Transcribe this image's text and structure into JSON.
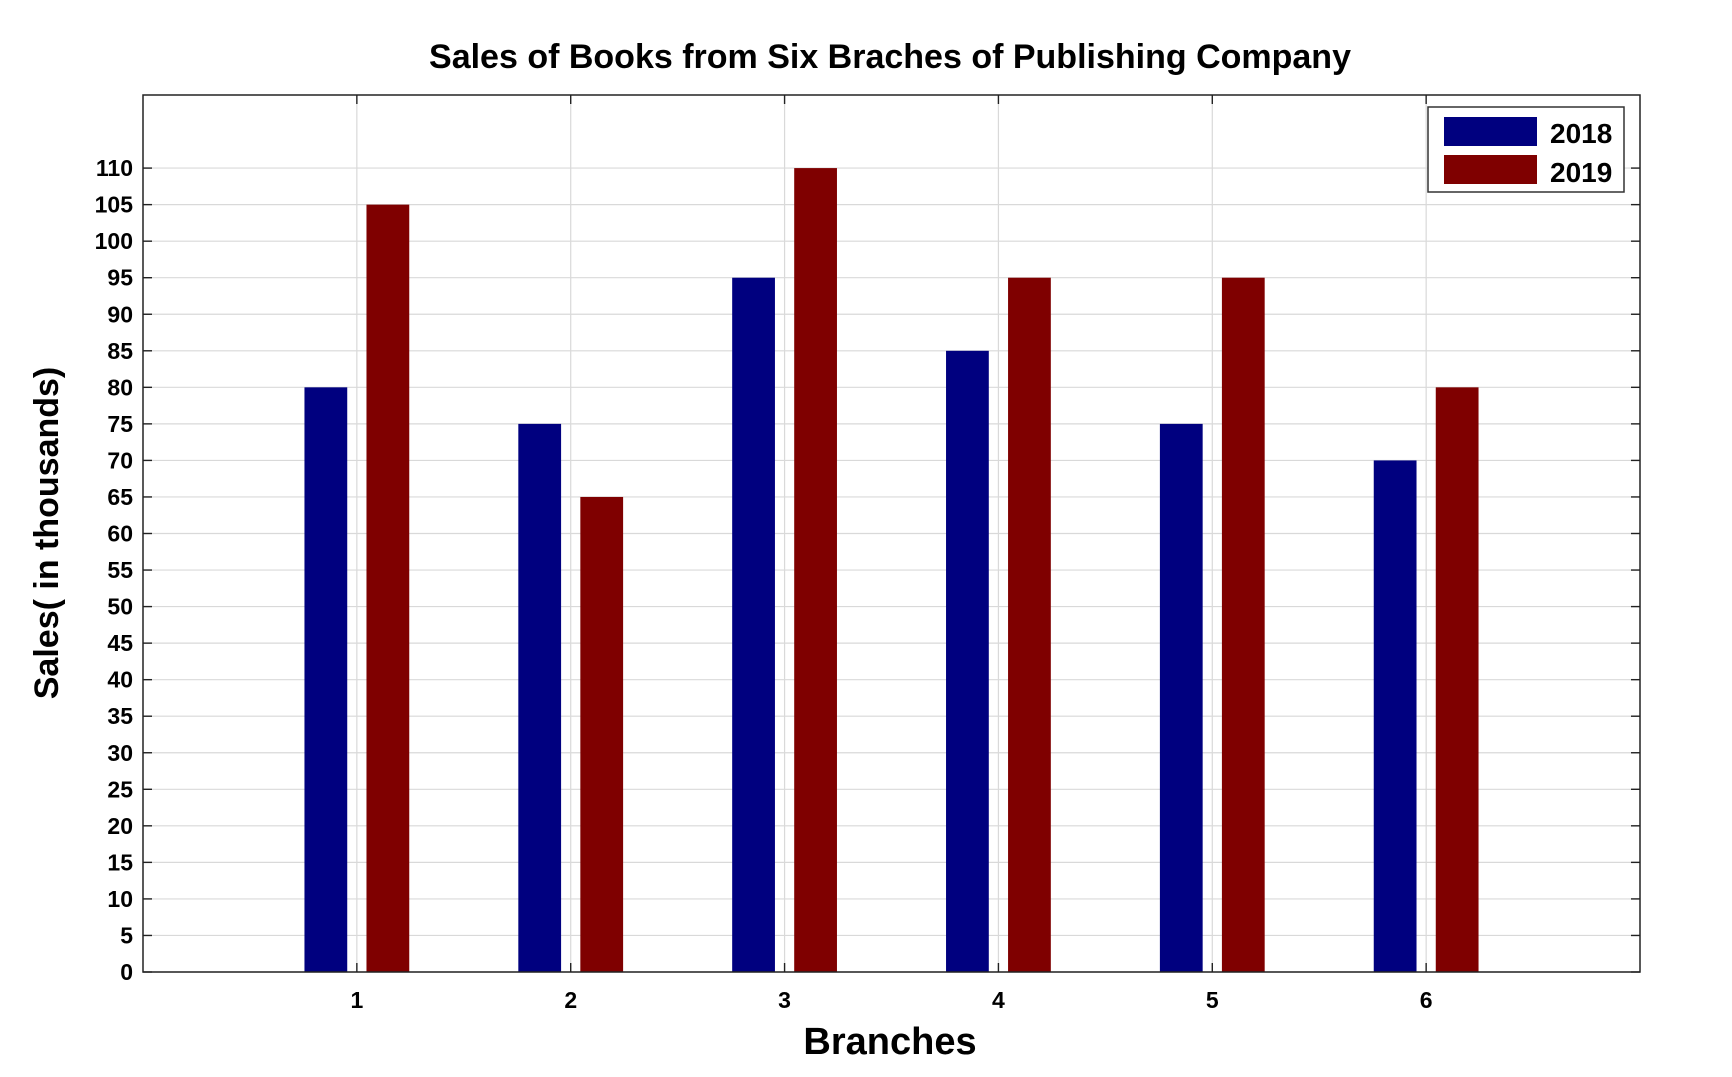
{
  "chart_data": {
    "type": "bar",
    "title": "Sales of Books from Six Braches of Publishing Company",
    "xlabel": "Branches",
    "ylabel": "Sales( in thousands)",
    "categories": [
      "1",
      "2",
      "3",
      "4",
      "5",
      "6"
    ],
    "xlim": [
      0,
      7
    ],
    "ylim": [
      0,
      120
    ],
    "yticks": [
      0,
      5,
      10,
      15,
      20,
      25,
      30,
      35,
      40,
      45,
      50,
      55,
      60,
      65,
      70,
      75,
      80,
      85,
      90,
      95,
      100,
      105,
      110
    ],
    "grid": true,
    "legend_position": "top-right",
    "series": [
      {
        "name": "2018",
        "color": "#00007f",
        "values": [
          80,
          75,
          95,
          85,
          75,
          70
        ]
      },
      {
        "name": "2019",
        "color": "#7f0000",
        "values": [
          105,
          65,
          110,
          95,
          95,
          80
        ]
      }
    ]
  }
}
